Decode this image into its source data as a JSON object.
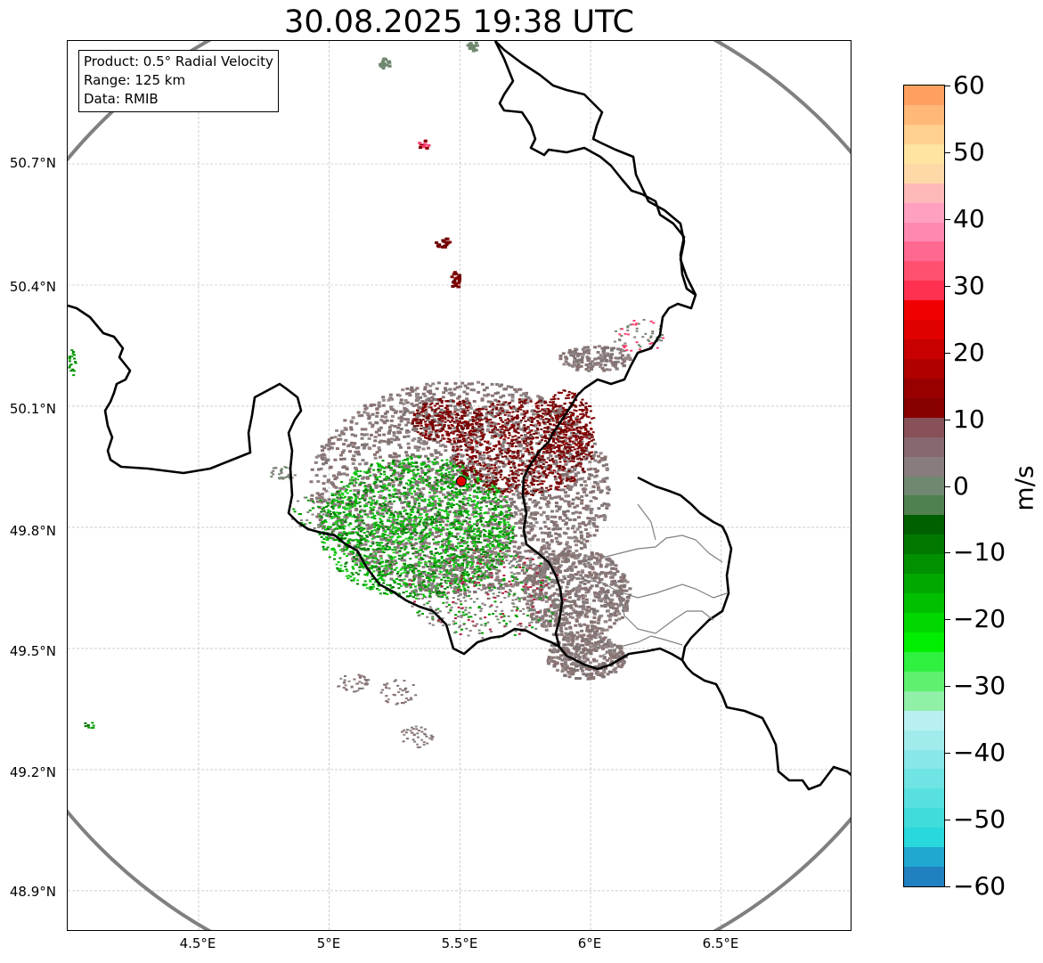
{
  "title": "30.08.2025 19:38 UTC",
  "info_box": {
    "product": "Product: 0.5° Radial Velocity",
    "range": "Range: 125 km",
    "data": "Data: RMIB"
  },
  "lat_labels": [
    "50.7°N",
    "50.4°N",
    "50.1°N",
    "49.8°N",
    "49.5°N",
    "49.2°N",
    "48.9°N"
  ],
  "lon_labels": [
    "4.5°E",
    "5°E",
    "5.5°E",
    "6°E",
    "6.5°E"
  ],
  "colorbar": {
    "unit": "m/s",
    "tick_labels": [
      "60",
      "50",
      "40",
      "30",
      "20",
      "10",
      "0",
      "−10",
      "−20",
      "−30",
      "−40",
      "−50",
      "−60"
    ],
    "range": [
      -60,
      60
    ],
    "colors": [
      "#2080c0",
      "#20a8d0",
      "#28d8dc",
      "#40dcdc",
      "#58e0e0",
      "#70e4e4",
      "#88e8e8",
      "#a0ecec",
      "#b8f0f0",
      "#90f0a8",
      "#60f070",
      "#30f040",
      "#00ee00",
      "#00d800",
      "#00c000",
      "#00a800",
      "#009000",
      "#007800",
      "#006000",
      "#508050",
      "#708870",
      "#887c7c",
      "#886870",
      "#885058",
      "#880000",
      "#980000",
      "#b00000",
      "#c80000",
      "#e00000",
      "#f00000",
      "#ff3050",
      "#ff5070",
      "#ff6890",
      "#ff88b0",
      "#ffa0c0",
      "#ffb8b8",
      "#ffd8a8",
      "#ffe4a0",
      "#ffd090",
      "#ffb878",
      "#ffa060"
    ]
  },
  "radar_site": {
    "lat": 49.914,
    "lon": 5.505,
    "color": "#e00000"
  },
  "colors": {
    "gridline": "#b0b0b0",
    "border": "#000000",
    "range_ring": "#808080",
    "radar_green": "#00a000",
    "radar_gray": "#887c7c",
    "radar_darkred": "#800000"
  }
}
